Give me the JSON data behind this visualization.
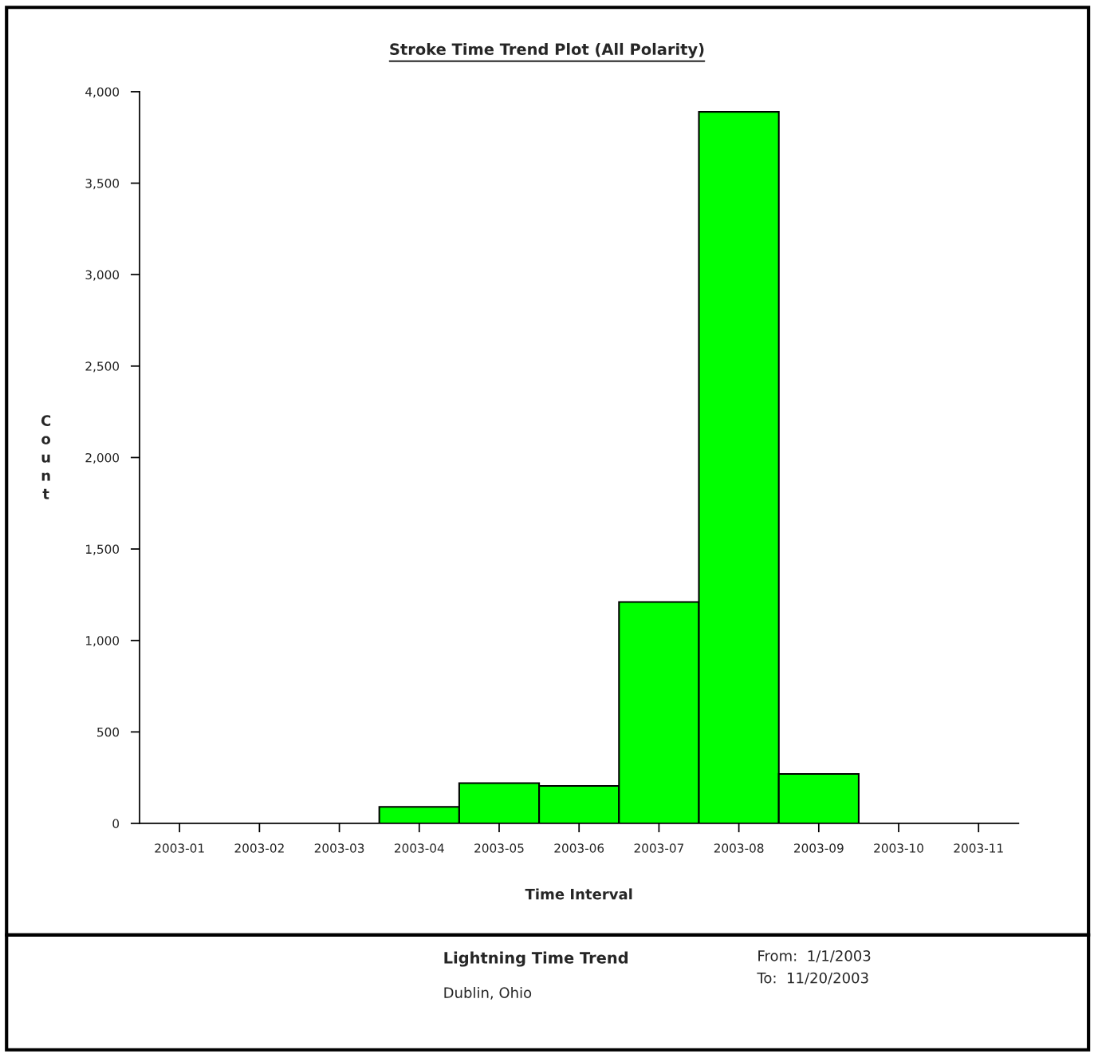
{
  "chart_data": {
    "type": "bar",
    "title": "Stroke Time Trend Plot (All Polarity)",
    "xlabel": "Time Interval",
    "ylabel": "Count",
    "categories": [
      "2003-01",
      "2003-02",
      "2003-03",
      "2003-04",
      "2003-05",
      "2003-06",
      "2003-07",
      "2003-08",
      "2003-09",
      "2003-10",
      "2003-11"
    ],
    "values": [
      0,
      0,
      0,
      90,
      220,
      205,
      1210,
      3890,
      270,
      0,
      0
    ],
    "color": "#00ff00",
    "ylim": [
      0,
      4000
    ],
    "yticks": [
      0,
      {
        "value": 500,
        "label": "500"
      },
      {
        "value": 1000,
        "label": "1,000"
      },
      {
        "value": 1500,
        "label": "1,500"
      },
      {
        "value": 2000,
        "label": "2,000"
      },
      {
        "value": 2500,
        "label": "2,500"
      },
      {
        "value": 3000,
        "label": "3,000"
      },
      {
        "value": 3500,
        "label": "3,500"
      },
      {
        "value": 4000,
        "label": "4,000"
      }
    ],
    "grid": false,
    "legend": false,
    "annotations": [
      "Lightning Time Trend",
      "Dublin, Ohio",
      "From:  1/1/2003",
      "To:  11/20/2003"
    ]
  }
}
